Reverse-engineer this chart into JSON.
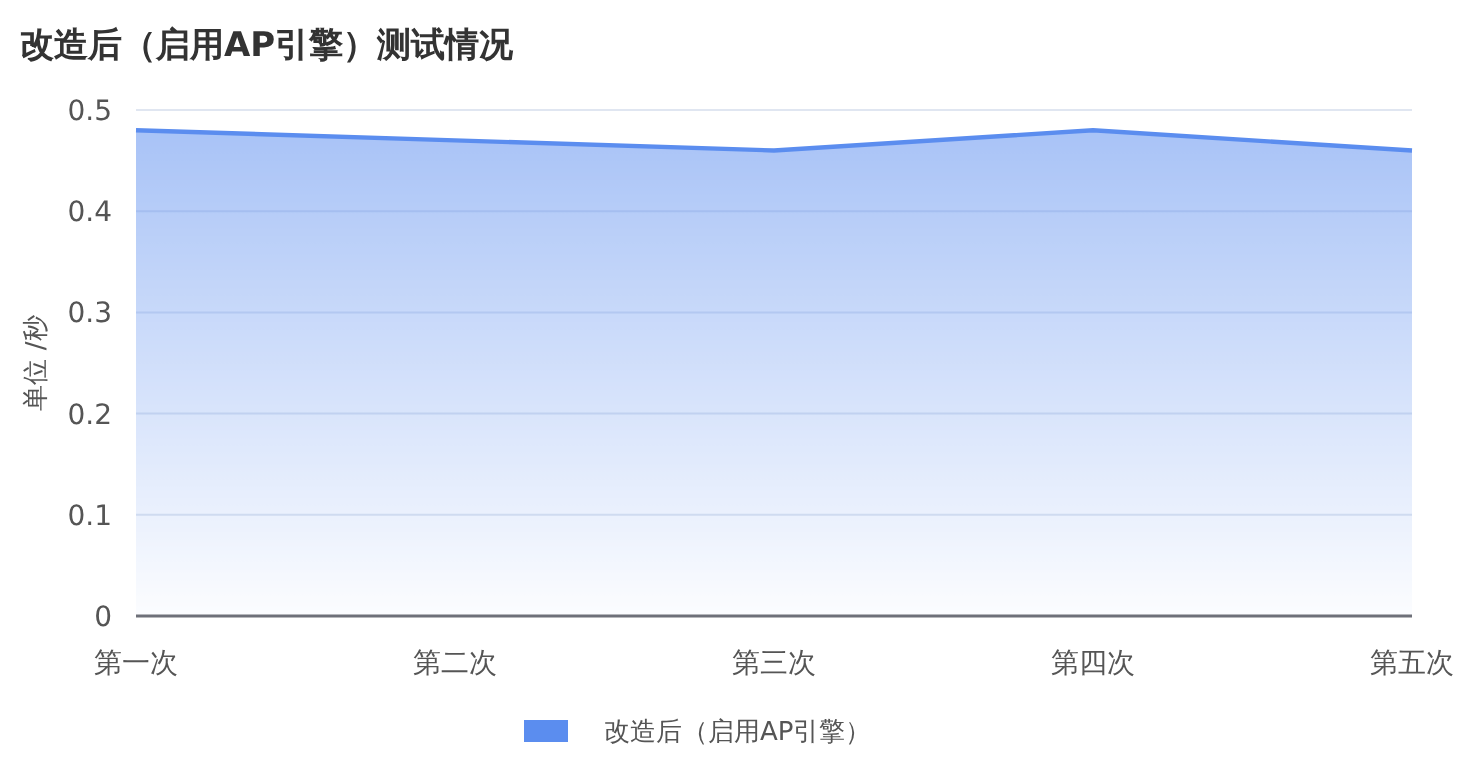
{
  "chart_data": {
    "type": "area",
    "title": "改造后（启用AP引擎）测试情况",
    "ylabel": "单位 /秒",
    "categories": [
      "第一次",
      "第二次",
      "第三次",
      "第四次",
      "第五次"
    ],
    "series": [
      {
        "name": "改造后（启用AP引擎）",
        "color": "#5b8def",
        "values": [
          0.48,
          0.47,
          0.46,
          0.48,
          0.46
        ]
      }
    ],
    "ylim": [
      0,
      0.5
    ],
    "yticks": [
      0,
      0.1,
      0.2,
      0.3,
      0.4,
      0.5
    ],
    "grid": "y",
    "legend": "bottom"
  }
}
